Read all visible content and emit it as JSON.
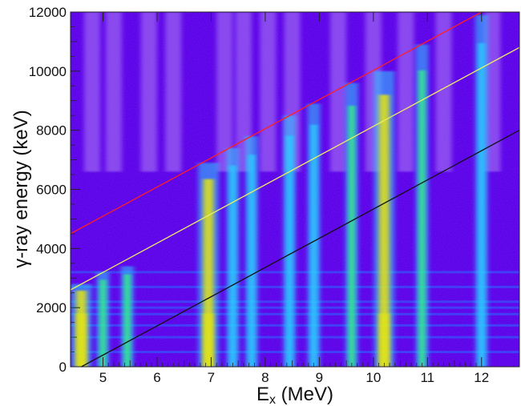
{
  "chart_data": {
    "type": "heatmap",
    "title": "",
    "xlabel_main": "E",
    "xlabel_sub": "x",
    "xlabel_unit": " (MeV)",
    "ylabel": "γ-ray energy (keV)",
    "xlim": [
      4.4,
      12.7
    ],
    "ylim": [
      0,
      12000
    ],
    "x_ticks": [
      5,
      6,
      7,
      8,
      9,
      10,
      11,
      12
    ],
    "y_ticks": [
      0,
      2000,
      4000,
      6000,
      8000,
      10000,
      12000
    ],
    "x_tick_labels": [
      "5",
      "6",
      "7",
      "8",
      "9",
      "10",
      "11",
      "12"
    ],
    "y_tick_labels": [
      "0",
      "2000",
      "4000",
      "6000",
      "8000",
      "10000",
      "12000"
    ],
    "grid": false,
    "colormap": [
      "#5b00e8",
      "#1f6bff",
      "#22d8ff",
      "#2cff7a",
      "#e9f000"
    ],
    "background_color": "#5b00e8",
    "lines": [
      {
        "color": "#ff2020",
        "points": [
          [
            4.4,
            4500
          ],
          [
            12.0,
            12000
          ]
        ]
      },
      {
        "color": "#f0f060",
        "points": [
          [
            4.4,
            2600
          ],
          [
            12.7,
            10800
          ]
        ]
      },
      {
        "color": "#111111",
        "points": [
          [
            4.6,
            0
          ],
          [
            12.7,
            8000
          ]
        ]
      }
    ],
    "bright_columns": [
      {
        "ex": 4.6,
        "ymax": 2800,
        "intensity": 0.95
      },
      {
        "ex": 5.0,
        "ymax": 3200,
        "intensity": 0.7
      },
      {
        "ex": 5.45,
        "ymax": 3400,
        "intensity": 0.55
      },
      {
        "ex": 6.95,
        "ymax": 6900,
        "intensity": 1.0
      },
      {
        "ex": 7.4,
        "ymax": 7400,
        "intensity": 0.45
      },
      {
        "ex": 7.75,
        "ymax": 7800,
        "intensity": 0.4
      },
      {
        "ex": 8.45,
        "ymax": 8500,
        "intensity": 0.4
      },
      {
        "ex": 8.9,
        "ymax": 8900,
        "intensity": 0.45
      },
      {
        "ex": 9.6,
        "ymax": 9600,
        "intensity": 0.55
      },
      {
        "ex": 10.2,
        "ymax": 10000,
        "intensity": 0.9
      },
      {
        "ex": 10.9,
        "ymax": 10900,
        "intensity": 0.6
      },
      {
        "ex": 12.0,
        "ymax": 11900,
        "intensity": 0.45
      }
    ],
    "horizontal_bands_kev": [
      500,
      1000,
      1400,
      1780,
      2000,
      2200,
      2700,
      3200
    ]
  }
}
